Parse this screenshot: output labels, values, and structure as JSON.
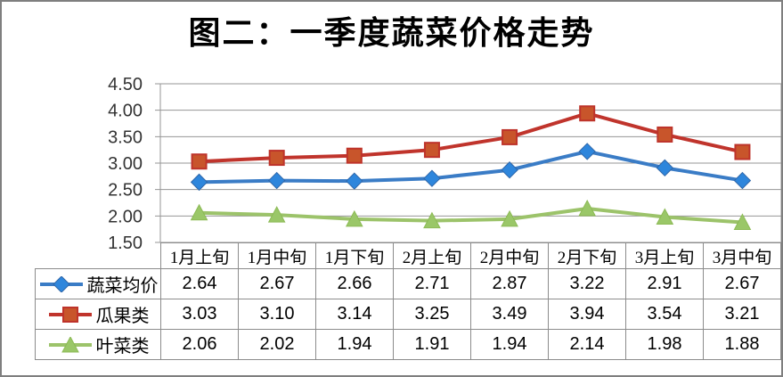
{
  "frame": {
    "background": "#ffffff",
    "border_color": "#7f7f7f"
  },
  "chart_data": {
    "type": "line",
    "title": "图二：一季度蔬菜价格走势",
    "categories": [
      "1月上旬",
      "1月中旬",
      "1月下旬",
      "2月上旬",
      "2月中旬",
      "2月下旬",
      "3月上旬",
      "3月中旬"
    ],
    "series": [
      {
        "name": "蔬菜均价",
        "marker": "diamond",
        "color": "#3a7cc6",
        "marker_fill": "#2e86dc",
        "marker_stroke": "#2f66a8",
        "values": [
          2.64,
          2.67,
          2.66,
          2.71,
          2.87,
          3.22,
          2.91,
          2.67
        ]
      },
      {
        "name": "瓜果类",
        "marker": "square",
        "color": "#c0342c",
        "marker_fill": "#c8552b",
        "marker_stroke": "#be332a",
        "values": [
          3.03,
          3.1,
          3.14,
          3.25,
          3.49,
          3.94,
          3.54,
          3.21
        ]
      },
      {
        "name": "叶菜类",
        "marker": "triangle",
        "color": "#9cc36a",
        "marker_fill": "#9ac768",
        "marker_stroke": "#8cba55",
        "values": [
          2.06,
          2.02,
          1.94,
          1.91,
          1.94,
          2.14,
          1.98,
          1.88
        ]
      }
    ],
    "ylim": [
      1.5,
      4.5
    ],
    "yticks": [
      "4.50",
      "4.00",
      "3.50",
      "3.00",
      "2.50",
      "2.00",
      "1.50"
    ],
    "grid": true,
    "gridline_color": "#969696",
    "legend_position": "data-table-left",
    "data_table_shown": true,
    "value_decimals": 2
  }
}
